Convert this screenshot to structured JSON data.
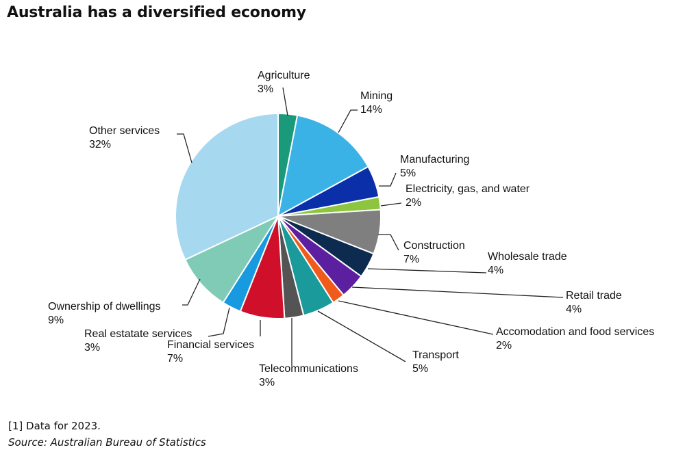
{
  "title": "Australia has a diversified economy",
  "footnote": "[1] Data for 2023.",
  "source": "Source: Australian Bureau of Statistics",
  "chart_data": {
    "type": "pie",
    "title": "Australia has a diversified economy",
    "slices": [
      {
        "label": "Agriculture",
        "value": 3,
        "value_label": "3%",
        "color": "#1a9a7a"
      },
      {
        "label": "Mining",
        "value": 14,
        "value_label": "14%",
        "color": "#3bb2e6"
      },
      {
        "label": "Manufacturing",
        "value": 5,
        "value_label": "5%",
        "color": "#0a2fa8"
      },
      {
        "label": "Electricity, gas, and water",
        "value": 2,
        "value_label": "2%",
        "color": "#8cc63f"
      },
      {
        "label": "Construction",
        "value": 7,
        "value_label": "7%",
        "color": "#7f7f7f"
      },
      {
        "label": "Wholesale trade",
        "value": 4,
        "value_label": "4%",
        "color": "#0d2b4e"
      },
      {
        "label": "Retail trade",
        "value": 4,
        "value_label": "4%",
        "color": "#5b1fa0"
      },
      {
        "label": "Accomodation and food services",
        "value": 2,
        "value_label": "2%",
        "color": "#f05a1a"
      },
      {
        "label": "Transport",
        "value": 5,
        "value_label": "5%",
        "color": "#1a9a9a"
      },
      {
        "label": "Telecommunications",
        "value": 3,
        "value_label": "3%",
        "color": "#545454"
      },
      {
        "label": "Financial services",
        "value": 7,
        "value_label": "7%",
        "color": "#d0102a"
      },
      {
        "label": "Real estatate services",
        "value": 3,
        "value_label": "3%",
        "color": "#189ae0"
      },
      {
        "label": "Ownership of dwellings",
        "value": 9,
        "value_label": "9%",
        "color": "#7fcbb5"
      },
      {
        "label": "Other services",
        "value": 32,
        "value_label": "32%",
        "color": "#a6d9f0"
      }
    ]
  }
}
